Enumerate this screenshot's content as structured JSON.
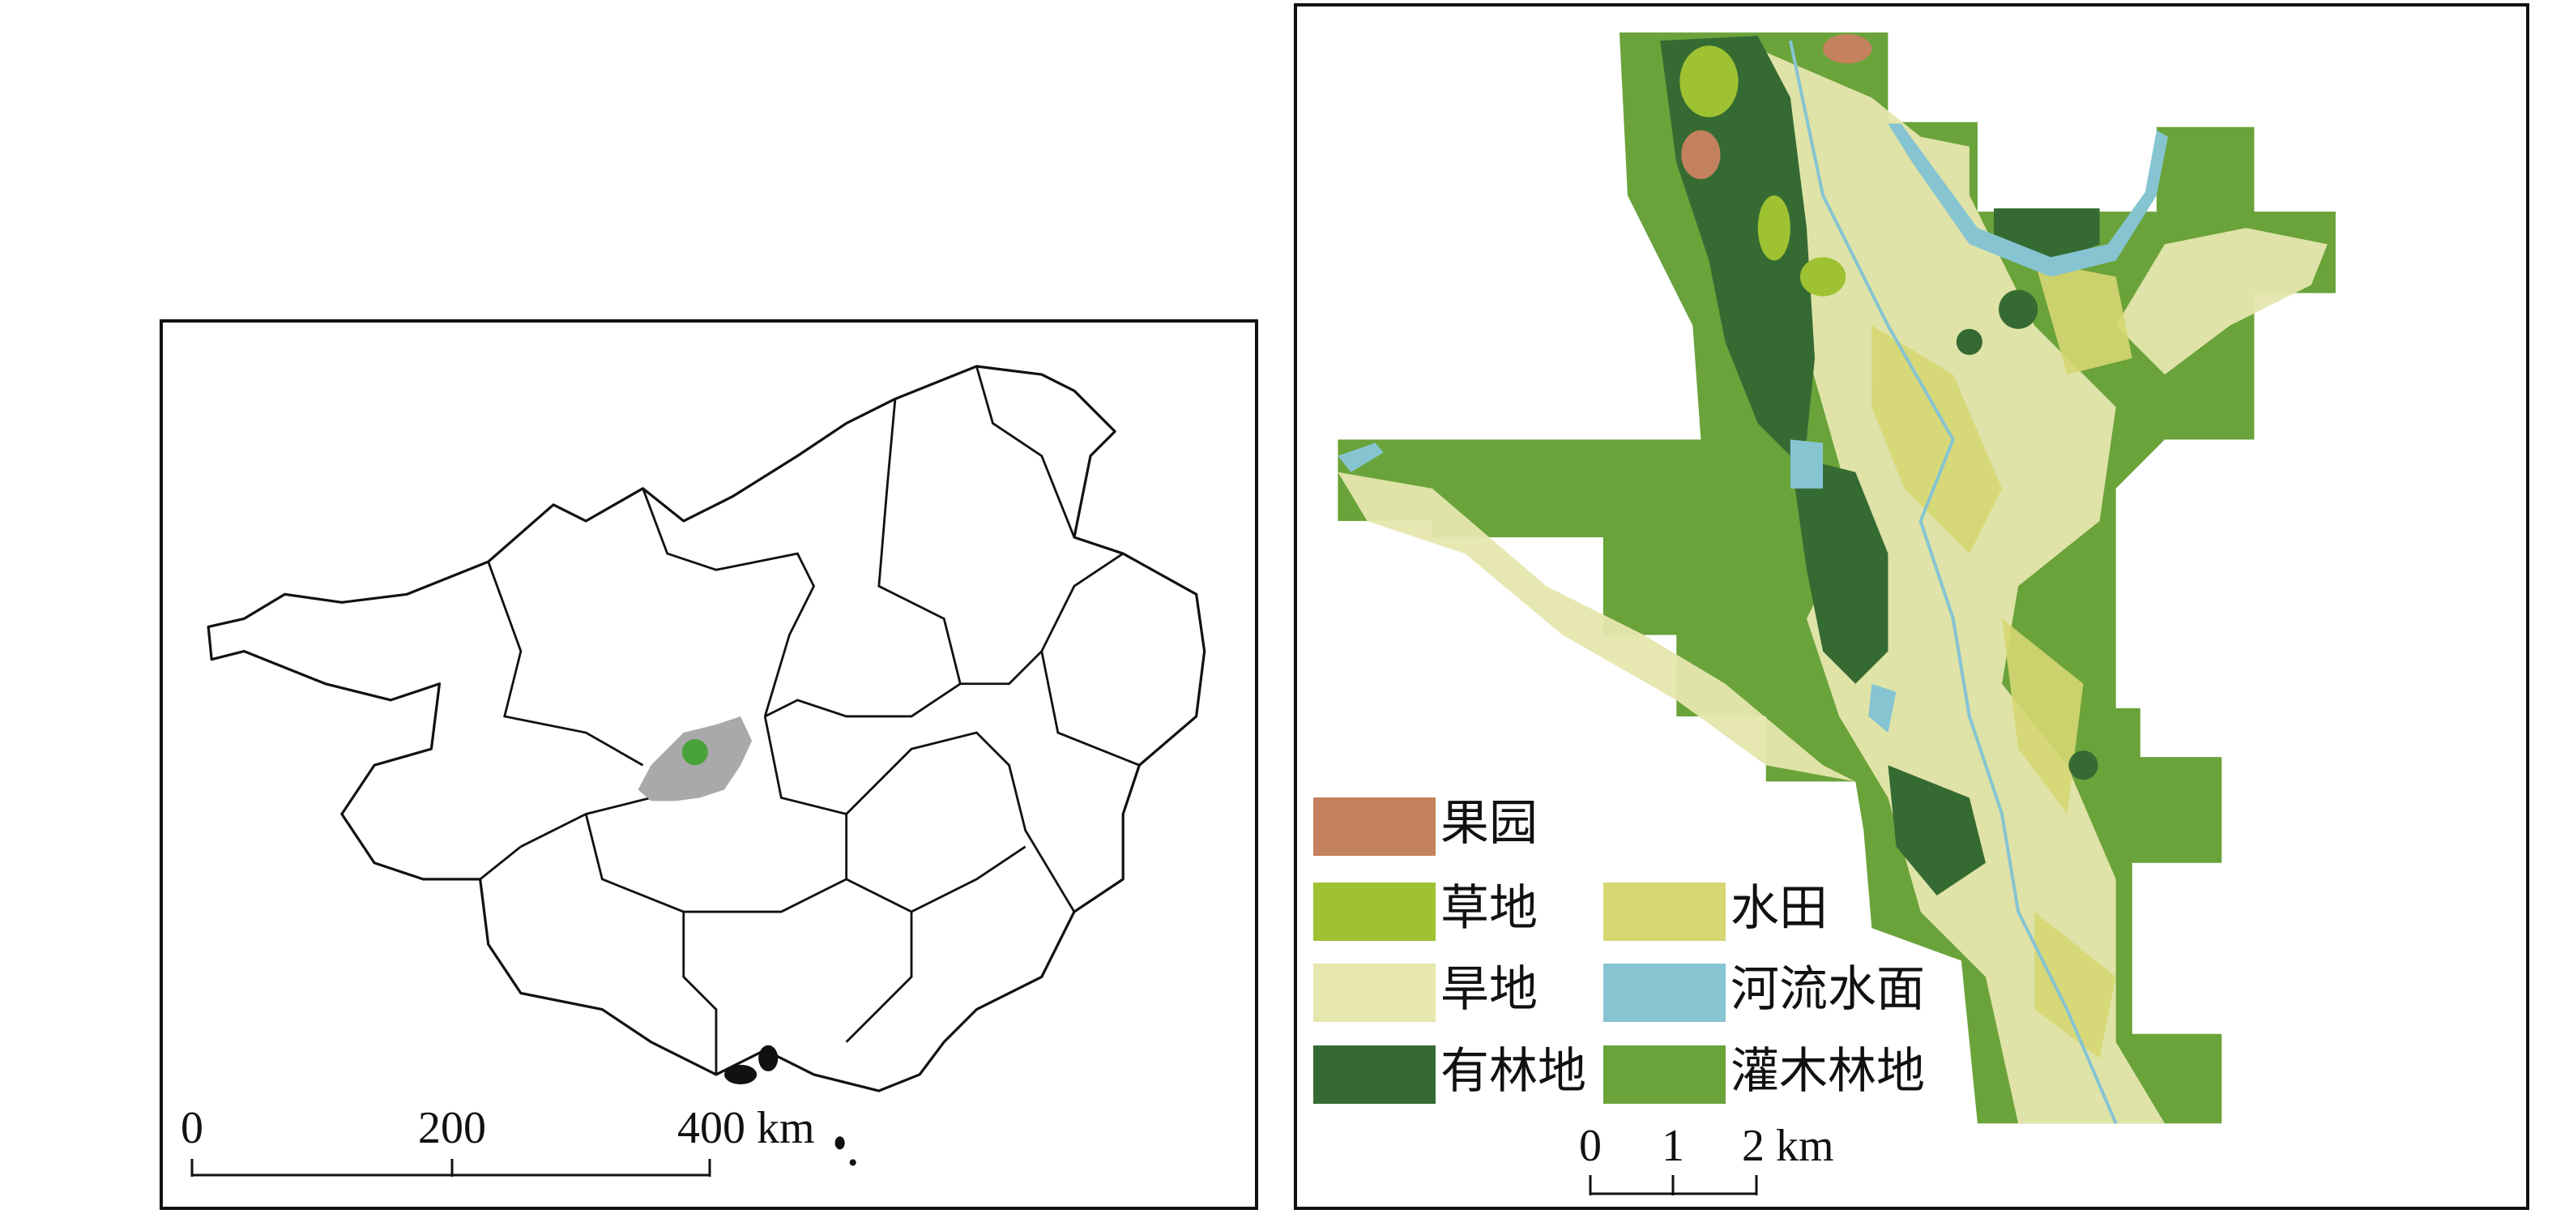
{
  "left_map": {
    "scale_labels": [
      "0",
      "200",
      "400 km"
    ]
  },
  "right_map": {
    "legend": [
      {
        "label": "果园",
        "color": "#c4815e"
      },
      {
        "label": "草地",
        "color": "#9ec232"
      },
      {
        "label": "水田",
        "color": "#d6d672"
      },
      {
        "label": "旱地",
        "color": "#e6e7ad"
      },
      {
        "label": "河流水面",
        "color": "#86c4d2"
      },
      {
        "label": "有林地",
        "color": "#356b33"
      },
      {
        "label": "灌木林地",
        "color": "#6aa33a"
      }
    ],
    "scale_labels": [
      "0",
      "1",
      "2 km"
    ]
  }
}
